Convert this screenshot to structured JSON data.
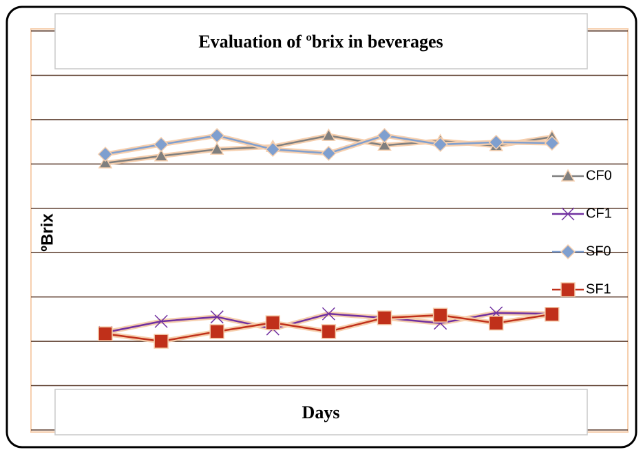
{
  "chart_data": {
    "type": "line",
    "title": "Evaluation of ºbrix in beverages",
    "x_label": "Days",
    "y_label": "ºBrix",
    "categories": [
      null,
      null,
      null,
      null,
      null,
      null,
      null,
      null,
      null
    ],
    "series": [
      {
        "name": "CF0",
        "color": "#7f7f7f",
        "marker": "triangle",
        "values": [
          6.02,
          6.18,
          6.33,
          6.39,
          6.64,
          6.42,
          6.52,
          6.41,
          6.61
        ]
      },
      {
        "name": "CF1",
        "color": "#7030a0",
        "marker": "x",
        "values": [
          2.2,
          2.45,
          2.55,
          2.28,
          2.62,
          2.53,
          2.41,
          2.64,
          2.62
        ]
      },
      {
        "name": "SF0",
        "color": "#7f9fcf",
        "marker": "diamond",
        "values": [
          6.22,
          6.44,
          6.64,
          6.33,
          6.24,
          6.64,
          6.44,
          6.49,
          6.47
        ]
      },
      {
        "name": "SF1",
        "color": "#c0301a",
        "marker": "square",
        "values": [
          2.17,
          2.0,
          2.22,
          2.42,
          2.22,
          2.53,
          2.59,
          2.41,
          2.61
        ]
      }
    ],
    "ylim": [
      0,
      9
    ],
    "yticks": [
      0,
      1,
      2,
      3,
      4,
      5,
      6,
      7,
      8,
      9
    ],
    "grid": true,
    "legend": "right"
  }
}
